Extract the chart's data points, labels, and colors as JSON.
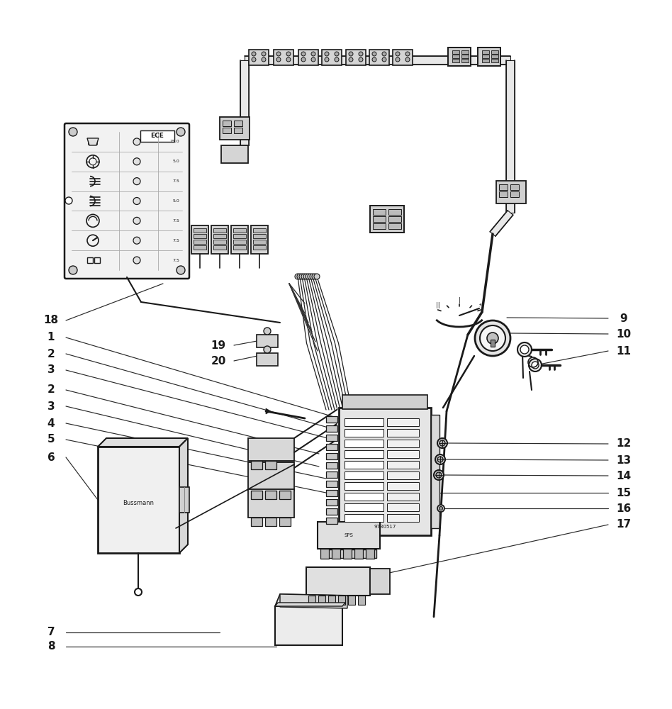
{
  "bg_color": "#ffffff",
  "lc": "#1a1a1a",
  "figsize": [
    9.48,
    10.0
  ],
  "dpi": 100,
  "labels_left": [
    {
      "n": "18",
      "ix": 88,
      "iy": 452
    },
    {
      "n": "1",
      "ix": 88,
      "iy": 476
    },
    {
      "n": "2",
      "ix": 88,
      "iy": 499
    },
    {
      "n": "3",
      "ix": 88,
      "iy": 522
    },
    {
      "n": "2",
      "ix": 88,
      "iy": 550
    },
    {
      "n": "3",
      "ix": 88,
      "iy": 573
    },
    {
      "n": "4",
      "ix": 88,
      "iy": 597
    },
    {
      "n": "5",
      "ix": 88,
      "iy": 620
    },
    {
      "n": "6",
      "ix": 88,
      "iy": 645
    },
    {
      "n": "7",
      "ix": 88,
      "iy": 892
    },
    {
      "n": "8",
      "ix": 88,
      "iy": 912
    }
  ],
  "labels_mid": [
    {
      "n": "19",
      "ix": 323,
      "iy": 487
    },
    {
      "n": "20",
      "ix": 323,
      "iy": 509
    }
  ],
  "labels_right": [
    {
      "n": "9",
      "ix": 876,
      "iy": 449
    },
    {
      "n": "10",
      "ix": 876,
      "iy": 471
    },
    {
      "n": "11",
      "ix": 876,
      "iy": 495
    },
    {
      "n": "12",
      "ix": 876,
      "iy": 626
    },
    {
      "n": "13",
      "ix": 876,
      "iy": 649
    },
    {
      "n": "14",
      "ix": 876,
      "iy": 671
    },
    {
      "n": "15",
      "ix": 876,
      "iy": 695
    },
    {
      "n": "16",
      "ix": 876,
      "iy": 717
    },
    {
      "n": "17",
      "ix": 876,
      "iy": 740
    }
  ]
}
